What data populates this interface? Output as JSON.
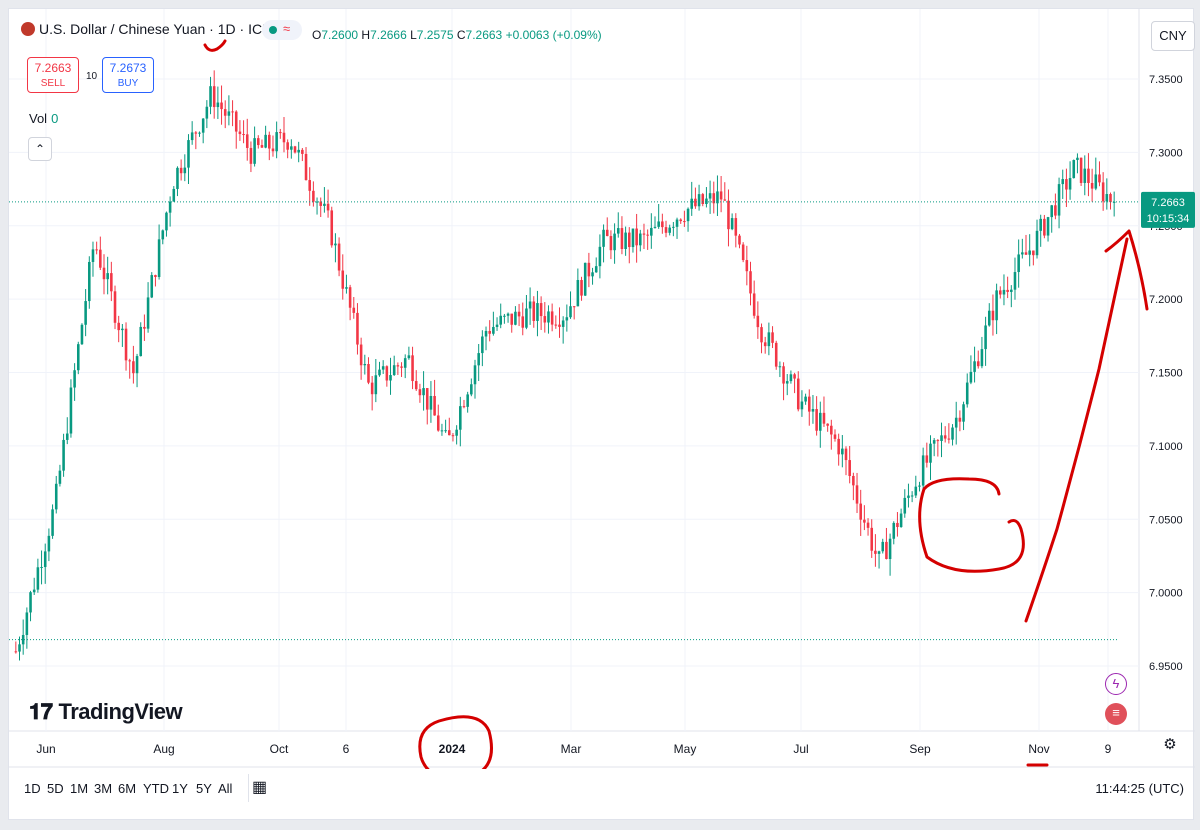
{
  "header": {
    "symbol_title": "U.S. Dollar / Chinese Yuan · ",
    "interval": "1D",
    "exchange_sep": " · ICE",
    "ohlc": {
      "o_label": "O",
      "o": "7.2600",
      "h_label": "H",
      "h": "7.2666",
      "l_label": "L",
      "l": "7.2575",
      "c_label": "C",
      "c": "7.2663",
      "change": "+0.0063 (+0.09%)"
    }
  },
  "trade": {
    "sell_price": "7.2663",
    "sell_label": "SELL",
    "spread": "10",
    "buy_price": "7.2673",
    "buy_label": "BUY"
  },
  "volume": {
    "label": "Vol",
    "value": "0"
  },
  "currency": "CNY",
  "logo_text": "TradingView",
  "price_tag": {
    "price": "7.2663",
    "countdown": "10:15:34"
  },
  "timeframes": [
    "1D",
    "5D",
    "1M",
    "3M",
    "6M",
    "YTD",
    "1Y",
    "5Y",
    "All"
  ],
  "clock": "11:44:25 (UTC)",
  "colors": {
    "up": "#089981",
    "down": "#f23645",
    "annotation": "#d40000",
    "accent": "#2962ff"
  },
  "icons": {
    "collapse": "chevron-up-icon",
    "calendar": "calendar-range-icon",
    "settings": "gear-icon",
    "lightning": "lightning-icon",
    "flag": "us-flag-icon"
  },
  "chart_data": {
    "type": "candlestick",
    "y_ticks": [
      "7.3500",
      "7.3000",
      "7.2500",
      "7.2000",
      "7.1500",
      "7.1000",
      "7.0500",
      "7.0000",
      "6.9500"
    ],
    "x_ticks": [
      "Jun",
      "Aug",
      "Oct",
      "6",
      "2024",
      "Mar",
      "May",
      "Jul",
      "Sep",
      "Nov",
      "9"
    ],
    "ylim": [
      6.93,
      7.36
    ],
    "grid": true,
    "last_price": 7.2663,
    "reference_line": 6.968,
    "approx_close_path": [
      {
        "t": "2023-05",
        "close": 6.96
      },
      {
        "t": "2023-06-early",
        "close": 7.06
      },
      {
        "t": "2023-06-late",
        "close": 7.24
      },
      {
        "t": "2023-07",
        "close": 7.15
      },
      {
        "t": "2023-08-mid",
        "close": 7.28
      },
      {
        "t": "2023-09-early",
        "close": 7.34
      },
      {
        "t": "2023-09-late",
        "close": 7.3
      },
      {
        "t": "2023-10-late",
        "close": 7.31
      },
      {
        "t": "2023-11-mid",
        "close": 7.25
      },
      {
        "t": "2023-11-late",
        "close": 7.14
      },
      {
        "t": "2023-12",
        "close": 7.16
      },
      {
        "t": "2024-01-early",
        "close": 7.1
      },
      {
        "t": "2024-01-late",
        "close": 7.18
      },
      {
        "t": "2024-02",
        "close": 7.19
      },
      {
        "t": "2024-03",
        "close": 7.19
      },
      {
        "t": "2024-04",
        "close": 7.24
      },
      {
        "t": "2024-05",
        "close": 7.24
      },
      {
        "t": "2024-06",
        "close": 7.26
      },
      {
        "t": "2024-07-mid",
        "close": 7.27
      },
      {
        "t": "2024-07-late",
        "close": 7.18
      },
      {
        "t": "2024-08",
        "close": 7.13
      },
      {
        "t": "2024-09-early",
        "close": 7.1
      },
      {
        "t": "2024-09-late",
        "close": 7.02
      },
      {
        "t": "2024-10-early",
        "close": 7.08
      },
      {
        "t": "2024-10-late",
        "close": 7.12
      },
      {
        "t": "2024-11-early",
        "close": 7.2
      },
      {
        "t": "2024-11-mid",
        "close": 7.24
      },
      {
        "t": "2024-11-late",
        "close": 7.29
      },
      {
        "t": "2024-12-09",
        "close": 7.2663
      }
    ]
  }
}
